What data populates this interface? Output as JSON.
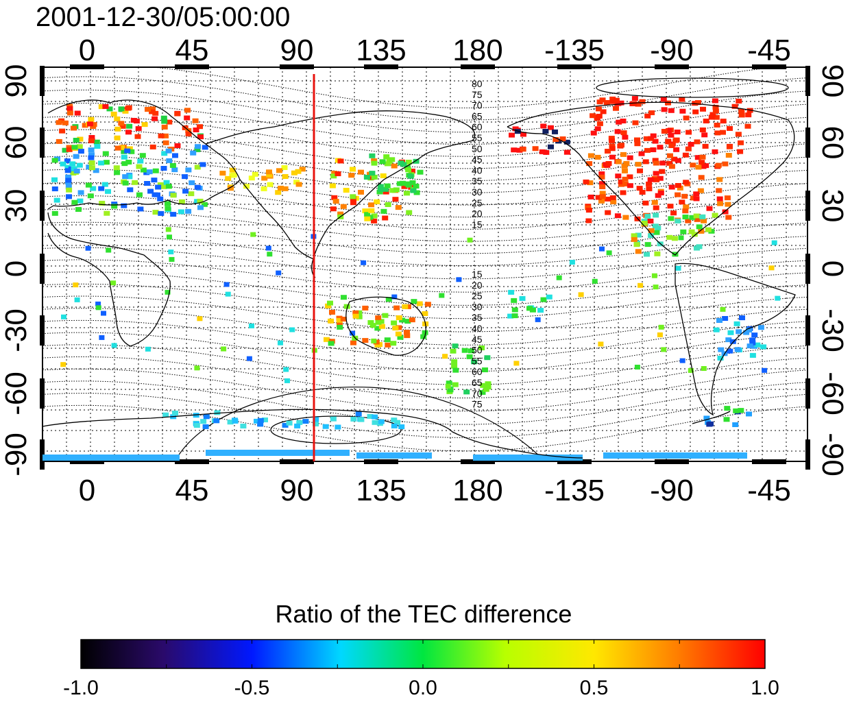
{
  "title": "2001-12-30/05:00:00",
  "top_lon_labels": [
    "0",
    "45",
    "90",
    "135",
    "180",
    "-135",
    "-90",
    "-45"
  ],
  "bottom_lon_labels": [
    "0",
    "45",
    "90",
    "135",
    "180",
    "-135",
    "-90",
    "-45"
  ],
  "left_lat_labels": [
    "90",
    "60",
    "30",
    "0",
    "-30",
    "-60",
    "-90"
  ],
  "right_lat_labels": [
    "90",
    "60",
    "30",
    "0",
    "-30",
    "-60",
    "-90"
  ],
  "maglat_labels_north": [
    "80",
    "75",
    "70",
    "65",
    "60",
    "55",
    "50",
    "45",
    "40",
    "35",
    "30",
    "25",
    "20",
    "15"
  ],
  "maglat_labels_south": [
    "15",
    "20",
    "25",
    "30",
    "35",
    "40",
    "45",
    "50",
    "55",
    "60",
    "65",
    "70",
    "75"
  ],
  "colorbar": {
    "title": "Ratio of the TEC difference",
    "tick_labels": [
      "-1.0",
      "-0.5",
      "0.0",
      "0.5",
      "1.0"
    ],
    "min": -1.0,
    "max": 1.0,
    "colors": [
      "#000000",
      "#3a0a8a",
      "#0018ff",
      "#00d8ff",
      "#00e640",
      "#f0ff00",
      "#ff8c00",
      "#ff0000"
    ]
  },
  "chart_data": {
    "type": "heatmap",
    "title": "2001-12-30/05:00:00",
    "x_ticks": [
      0,
      45,
      90,
      135,
      180,
      -135,
      -90,
      -45
    ],
    "y_ticks": [
      90,
      60,
      30,
      0,
      -30,
      -60,
      -90
    ],
    "value_range": [
      -1.0,
      1.0
    ],
    "reference_meridian_lon": 105,
    "colorbar_label": "Ratio of the TEC difference"
  },
  "colors": {
    "meridian": "#e8130f",
    "coast": "#000000",
    "grid": "#000000"
  }
}
